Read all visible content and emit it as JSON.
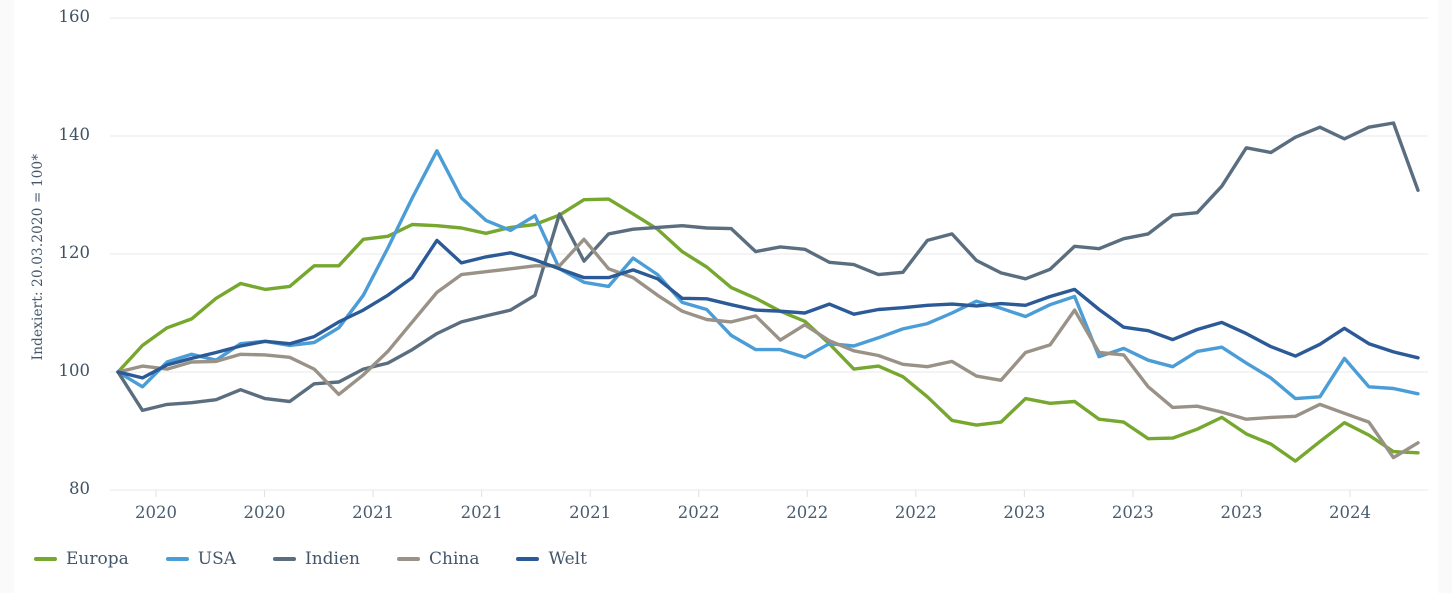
{
  "chart": {
    "y_axis_title": "Indexiert: 20.03.2020 = 100*",
    "background": "#ffffff",
    "gridline_color": "#eaeaea",
    "tick_label_color": "#3f5265",
    "legend_text_color": "#44566b"
  },
  "chart_data": {
    "type": "line",
    "title": "",
    "ylabel": "Indexiert: 20.03.2020 = 100*",
    "xlabel": "",
    "ylim": [
      80,
      160
    ],
    "y_ticks": [
      160,
      140,
      120,
      100,
      80
    ],
    "x_tick_labels": [
      "2020",
      "2020",
      "2021",
      "2021",
      "2021",
      "2022",
      "2022",
      "2022",
      "2023",
      "2023",
      "2023",
      "2024"
    ],
    "grid": "horizontal-only",
    "legend_position": "bottom-left",
    "series": [
      {
        "name": "Europa",
        "color": "#76a72e",
        "values": [
          100,
          104.5,
          107.5,
          109,
          112.5,
          115,
          114,
          114.5,
          118,
          118,
          122.5,
          123,
          125,
          124.8,
          124.4,
          123.5,
          124.5,
          125,
          126.6,
          129.2,
          129.3,
          126.8,
          124.2,
          120.4,
          117.8,
          114.3,
          112.5,
          110.3,
          108.6,
          104.8,
          100.5,
          101,
          99.2,
          95.8,
          91.8,
          91,
          91.5,
          95.5,
          94.7,
          95,
          92,
          91.5,
          88.7,
          88.8,
          90.3,
          92.3,
          89.5,
          87.8,
          84.9,
          88.2,
          91.4,
          89.3,
          86.5,
          86.3
        ]
      },
      {
        "name": "USA",
        "color": "#4a9dd6",
        "values": [
          100,
          97.5,
          101.7,
          103,
          102,
          104.8,
          105.2,
          104.5,
          105,
          107.5,
          113,
          121,
          129.5,
          137.5,
          129.5,
          125.7,
          124,
          126.5,
          117.5,
          115.2,
          114.5,
          119.3,
          116.5,
          111.8,
          110.6,
          106.2,
          103.8,
          103.8,
          102.5,
          104.8,
          104.4,
          105.8,
          107.3,
          108.2,
          110,
          112,
          110.8,
          109.4,
          111.4,
          112.8,
          102.6,
          104,
          102,
          100.9,
          103.5,
          104.2,
          101.5,
          99,
          95.5,
          95.8,
          102.3,
          97.5,
          97.2,
          96.3
        ]
      },
      {
        "name": "Indien",
        "color": "#5a6e7f",
        "values": [
          100,
          93.5,
          94.5,
          94.8,
          95.3,
          97,
          95.5,
          95,
          98,
          98.3,
          100.5,
          101.5,
          103.8,
          106.5,
          108.5,
          109.5,
          110.5,
          113,
          126.8,
          118.8,
          123.4,
          124.2,
          124.5,
          124.8,
          124.4,
          124.3,
          120.4,
          121.2,
          120.8,
          118.6,
          118.2,
          116.5,
          116.9,
          122.3,
          123.4,
          118.9,
          116.8,
          115.8,
          117.4,
          121.3,
          120.9,
          122.6,
          123.4,
          126.6,
          127,
          131.5,
          138,
          137.2,
          139.8,
          141.5,
          139.5,
          141.5,
          142.2,
          130.8
        ]
      },
      {
        "name": "China",
        "color": "#9a9287",
        "values": [
          100,
          101,
          100.5,
          101.7,
          101.8,
          103,
          102.9,
          102.5,
          100.5,
          96.2,
          99.5,
          103.5,
          108.5,
          113.5,
          116.5,
          117,
          117.5,
          118,
          118,
          122.5,
          117.5,
          116,
          113,
          110.3,
          108.9,
          108.5,
          109.5,
          105.4,
          108,
          105.3,
          103.6,
          102.8,
          101.3,
          100.9,
          101.8,
          99.3,
          98.6,
          103.3,
          104.6,
          110.5,
          103.3,
          102.9,
          97.5,
          94,
          94.2,
          93.2,
          92,
          92.3,
          92.5,
          94.5,
          93,
          91.5,
          85.5,
          88
        ]
      },
      {
        "name": "Welt",
        "color": "#2b5a97",
        "values": [
          100,
          99,
          101.2,
          102.3,
          103.3,
          104.4,
          105.2,
          104.8,
          106,
          108.5,
          110.5,
          113,
          116,
          122.3,
          118.5,
          119.5,
          120.2,
          119,
          117.5,
          116,
          116,
          117.3,
          115.8,
          112.5,
          112.4,
          111.4,
          110.5,
          110.3,
          110,
          111.5,
          109.8,
          110.6,
          110.9,
          111.3,
          111.5,
          111.2,
          111.6,
          111.3,
          112.8,
          114,
          110.6,
          107.6,
          107,
          105.5,
          107.2,
          108.4,
          106.5,
          104.3,
          102.7,
          104.7,
          107.4,
          104.8,
          103.4,
          102.4
        ]
      }
    ]
  }
}
